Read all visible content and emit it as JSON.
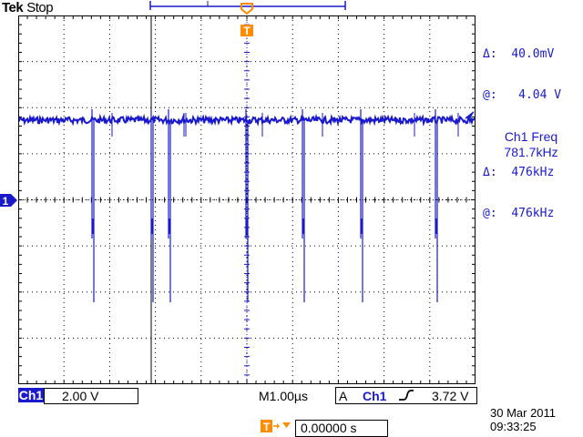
{
  "header": {
    "brand": "Tek",
    "acq_status": "Stop"
  },
  "cursor_readout": {
    "delta_symbol": "Δ:",
    "at_symbol": "@:",
    "voltage_delta": "40.0mV",
    "voltage_at": "4.04 V",
    "freq_delta": "476kHz",
    "freq_at": "476kHz"
  },
  "measurement": {
    "label": "Ch1 Freq",
    "value": "781.7kHz"
  },
  "channel": {
    "marker": "1",
    "label": "Ch1",
    "scale": "2.00 V"
  },
  "horizontal": {
    "prefix": "M",
    "timebase": "1.00µs"
  },
  "trigger": {
    "mode": "A",
    "source": "Ch1",
    "level": "3.72 V",
    "marker": "T",
    "position": "0.00000 s"
  },
  "datetime": {
    "date": "30 Mar  2011",
    "time": "09:33:25"
  },
  "colors": {
    "trace": "#1a1acc",
    "trigger": "#ff8c00",
    "grid": "#000000",
    "background": "#ffffff"
  }
}
